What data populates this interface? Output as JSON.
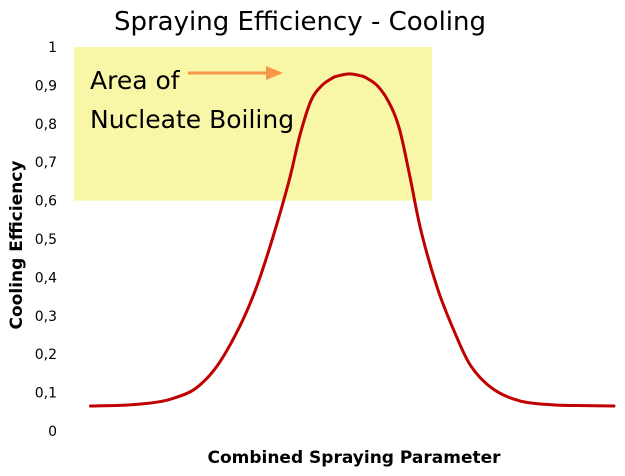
{
  "chart_data": {
    "type": "line",
    "title": "Spraying Efficiency - Cooling",
    "xlabel": "Combined Spraying Parameter",
    "ylabel": "Cooling Efficiency",
    "ylim": [
      0,
      1
    ],
    "y_ticks": [
      "0",
      "0,1",
      "0,2",
      "0,3",
      "0,4",
      "0,5",
      "0,6",
      "0,7",
      "0,8",
      "0,9",
      "1"
    ],
    "xlim": [
      0,
      100
    ],
    "grid": false,
    "highlight_region": {
      "x_range": [
        0,
        65
      ],
      "y_range": [
        0.6,
        1.0
      ],
      "color": "#f8f7a8",
      "label_line1": "Area of",
      "label_line2": "Nucleate Boiling"
    },
    "series": [
      {
        "color": "#c00000",
        "x": [
          3,
          10,
          15,
          18,
          22,
          26,
          30,
          33,
          36,
          39,
          41,
          43,
          45,
          47,
          48,
          50,
          52,
          53,
          55,
          57,
          59,
          61,
          63,
          66,
          69,
          72,
          76,
          81,
          87,
          93,
          98
        ],
        "y": [
          0.065,
          0.068,
          0.075,
          0.085,
          0.11,
          0.17,
          0.27,
          0.37,
          0.5,
          0.65,
          0.77,
          0.86,
          0.9,
          0.92,
          0.925,
          0.93,
          0.925,
          0.92,
          0.9,
          0.86,
          0.79,
          0.66,
          0.52,
          0.37,
          0.26,
          0.17,
          0.11,
          0.078,
          0.068,
          0.066,
          0.065
        ]
      }
    ]
  }
}
